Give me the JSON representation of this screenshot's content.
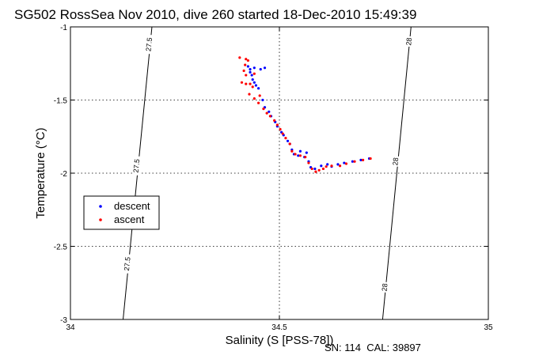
{
  "chart_data": {
    "type": "scatter",
    "title": "SG502 RossSea Nov 2010, dive 260 started 18-Dec-2010 15:49:39",
    "xlabel": "Salinity (S [PSS-78])",
    "ylabel": "Temperature (°C)",
    "xlim": [
      34,
      35
    ],
    "ylim": [
      -3,
      -1
    ],
    "x_ticks": [
      34,
      34.5,
      35
    ],
    "x_tick_labels": [
      "34",
      "34.5",
      "35"
    ],
    "y_ticks": [
      -3,
      -2.5,
      -2,
      -1.5,
      -1
    ],
    "y_tick_labels": [
      "-3",
      "-2.5",
      "-2",
      "-1.5",
      "-1"
    ],
    "grid": true,
    "legend_position": "left",
    "footer": "SN: 114  CAL: 39897",
    "contours": [
      {
        "label": "27.5",
        "points": [
          [
            34.126,
            -3
          ],
          [
            34.195,
            -1
          ]
        ]
      },
      {
        "label": "28",
        "points": [
          [
            34.747,
            -3
          ],
          [
            34.815,
            -1
          ]
        ]
      }
    ],
    "contour_labels": [
      {
        "text": "27.5",
        "x": 34.188,
        "y": -1.12
      },
      {
        "text": "27.5",
        "x": 34.158,
        "y": -1.95
      },
      {
        "text": "27.5",
        "x": 34.136,
        "y": -2.62
      },
      {
        "text": "28",
        "x": 34.81,
        "y": -1.1
      },
      {
        "text": "28",
        "x": 34.778,
        "y": -1.92
      },
      {
        "text": "28",
        "x": 34.752,
        "y": -2.78
      }
    ],
    "series": [
      {
        "name": "descent",
        "color": "#0000ff",
        "points": [
          [
            34.425,
            -1.27
          ],
          [
            34.43,
            -1.29
          ],
          [
            34.44,
            -1.28
          ],
          [
            34.455,
            -1.29
          ],
          [
            34.465,
            -1.28
          ],
          [
            34.43,
            -1.31
          ],
          [
            34.434,
            -1.33
          ],
          [
            34.436,
            -1.36
          ],
          [
            34.44,
            -1.38
          ],
          [
            34.444,
            -1.4
          ],
          [
            34.45,
            -1.42
          ],
          [
            34.46,
            -1.5
          ],
          [
            34.465,
            -1.55
          ],
          [
            34.475,
            -1.58
          ],
          [
            34.48,
            -1.61
          ],
          [
            34.49,
            -1.65
          ],
          [
            34.495,
            -1.68
          ],
          [
            34.505,
            -1.72
          ],
          [
            34.51,
            -1.74
          ],
          [
            34.52,
            -1.78
          ],
          [
            34.525,
            -1.8
          ],
          [
            34.53,
            -1.84
          ],
          [
            34.535,
            -1.87
          ],
          [
            34.545,
            -1.88
          ],
          [
            34.56,
            -1.89
          ],
          [
            34.57,
            -1.92
          ],
          [
            34.575,
            -1.96
          ],
          [
            34.585,
            -1.97
          ],
          [
            34.6,
            -1.95
          ],
          [
            34.615,
            -1.94
          ],
          [
            34.625,
            -1.955
          ],
          [
            34.64,
            -1.94
          ],
          [
            34.655,
            -1.93
          ],
          [
            34.675,
            -1.92
          ],
          [
            34.695,
            -1.91
          ],
          [
            34.715,
            -1.9
          ],
          [
            34.55,
            -1.85
          ],
          [
            34.565,
            -1.86
          ]
        ]
      },
      {
        "name": "ascent",
        "color": "#ff0000",
        "points": [
          [
            34.405,
            -1.21
          ],
          [
            34.42,
            -1.22
          ],
          [
            34.425,
            -1.23
          ],
          [
            34.418,
            -1.26
          ],
          [
            34.415,
            -1.3
          ],
          [
            34.42,
            -1.33
          ],
          [
            34.41,
            -1.38
          ],
          [
            34.42,
            -1.39
          ],
          [
            34.43,
            -1.39
          ],
          [
            34.436,
            -1.41
          ],
          [
            34.428,
            -1.46
          ],
          [
            34.44,
            -1.49
          ],
          [
            34.45,
            -1.52
          ],
          [
            34.462,
            -1.56
          ],
          [
            34.47,
            -1.59
          ],
          [
            34.478,
            -1.61
          ],
          [
            34.488,
            -1.64
          ],
          [
            34.495,
            -1.67
          ],
          [
            34.502,
            -1.7
          ],
          [
            34.508,
            -1.73
          ],
          [
            34.515,
            -1.76
          ],
          [
            34.525,
            -1.8
          ],
          [
            34.53,
            -1.85
          ],
          [
            34.538,
            -1.87
          ],
          [
            34.55,
            -1.88
          ],
          [
            34.562,
            -1.89
          ],
          [
            34.57,
            -1.93
          ],
          [
            34.578,
            -1.97
          ],
          [
            34.587,
            -1.99
          ],
          [
            34.595,
            -1.98
          ],
          [
            34.605,
            -1.97
          ],
          [
            34.612,
            -1.955
          ],
          [
            34.625,
            -1.95
          ],
          [
            34.645,
            -1.95
          ],
          [
            34.66,
            -1.935
          ],
          [
            34.68,
            -1.92
          ],
          [
            34.7,
            -1.91
          ],
          [
            34.718,
            -1.9
          ],
          [
            34.44,
            -1.32
          ],
          [
            34.453,
            -1.47
          ]
        ]
      }
    ]
  }
}
